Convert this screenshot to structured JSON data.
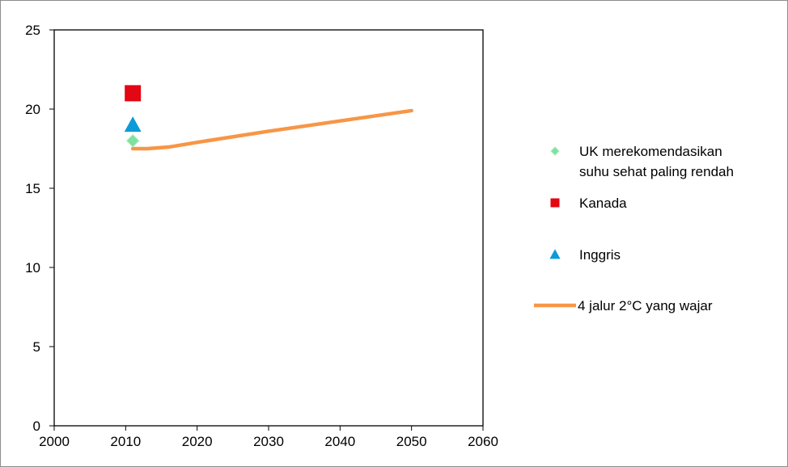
{
  "chart_data": {
    "type": "scatter",
    "title": "",
    "xlabel": "",
    "ylabel": "",
    "xlim": [
      2000,
      2060
    ],
    "ylim": [
      0,
      25
    ],
    "x_ticks": [
      2000,
      2010,
      2020,
      2030,
      2040,
      2050,
      2060
    ],
    "y_ticks": [
      0,
      5,
      10,
      15,
      20,
      25
    ],
    "grid": false,
    "legend_position": "right",
    "series": [
      {
        "name": "UK merekomendasikan suhu sehat paling rendah",
        "mark": "diamond",
        "color": "#7fe0a0",
        "points": [
          {
            "x": 2011,
            "y": 18
          }
        ]
      },
      {
        "name": "Kanada",
        "mark": "square",
        "color": "#e30613",
        "points": [
          {
            "x": 2011,
            "y": 21
          }
        ]
      },
      {
        "name": "Inggris",
        "mark": "triangle",
        "color": "#0d9ad8",
        "points": [
          {
            "x": 2011,
            "y": 19
          }
        ]
      },
      {
        "name": "4 jalur 2°C yang wajar",
        "mark": "line",
        "color": "#f79646",
        "points": [
          {
            "x": 2011,
            "y": 17.5
          },
          {
            "x": 2013,
            "y": 17.5
          },
          {
            "x": 2016,
            "y": 17.6
          },
          {
            "x": 2020,
            "y": 17.9
          },
          {
            "x": 2030,
            "y": 18.6
          },
          {
            "x": 2040,
            "y": 19.25
          },
          {
            "x": 2050,
            "y": 19.9
          }
        ]
      }
    ]
  }
}
